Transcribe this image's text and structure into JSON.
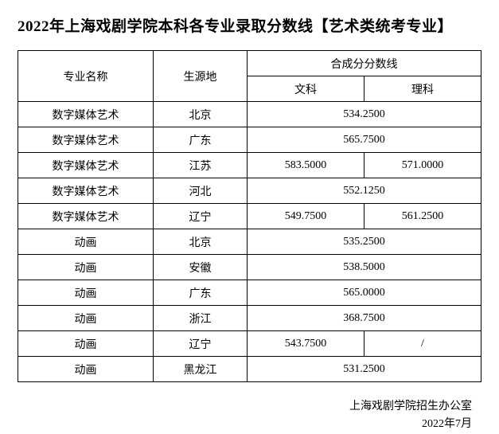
{
  "title": "2022年上海戏剧学院本科各专业录取分数线【艺术类统考专业】",
  "headers": {
    "major": "专业名称",
    "origin": "生源地",
    "scoreGroup": "合成分分数线",
    "wenke": "文科",
    "like": "理科"
  },
  "rows": [
    {
      "major": "数字媒体艺术",
      "origin": "北京",
      "merged": true,
      "score": "534.2500",
      "wen": "",
      "li": ""
    },
    {
      "major": "数字媒体艺术",
      "origin": "广东",
      "merged": true,
      "score": "565.7500",
      "wen": "",
      "li": ""
    },
    {
      "major": "数字媒体艺术",
      "origin": "江苏",
      "merged": false,
      "score": "",
      "wen": "583.5000",
      "li": "571.0000"
    },
    {
      "major": "数字媒体艺术",
      "origin": "河北",
      "merged": true,
      "score": "552.1250",
      "wen": "",
      "li": ""
    },
    {
      "major": "数字媒体艺术",
      "origin": "辽宁",
      "merged": false,
      "score": "",
      "wen": "549.7500",
      "li": "561.2500"
    },
    {
      "major": "动画",
      "origin": "北京",
      "merged": true,
      "score": "535.2500",
      "wen": "",
      "li": ""
    },
    {
      "major": "动画",
      "origin": "安徽",
      "merged": true,
      "score": "538.5000",
      "wen": "",
      "li": ""
    },
    {
      "major": "动画",
      "origin": "广东",
      "merged": true,
      "score": "565.0000",
      "wen": "",
      "li": ""
    },
    {
      "major": "动画",
      "origin": "浙江",
      "merged": true,
      "score": "368.7500",
      "wen": "",
      "li": ""
    },
    {
      "major": "动画",
      "origin": "辽宁",
      "merged": false,
      "score": "",
      "wen": "543.7500",
      "li": "/"
    },
    {
      "major": "动画",
      "origin": "黑龙江",
      "merged": true,
      "score": "531.2500",
      "wen": "",
      "li": ""
    }
  ],
  "footer": {
    "office": "上海戏剧学院招生办公室",
    "date": "2022年7月"
  }
}
